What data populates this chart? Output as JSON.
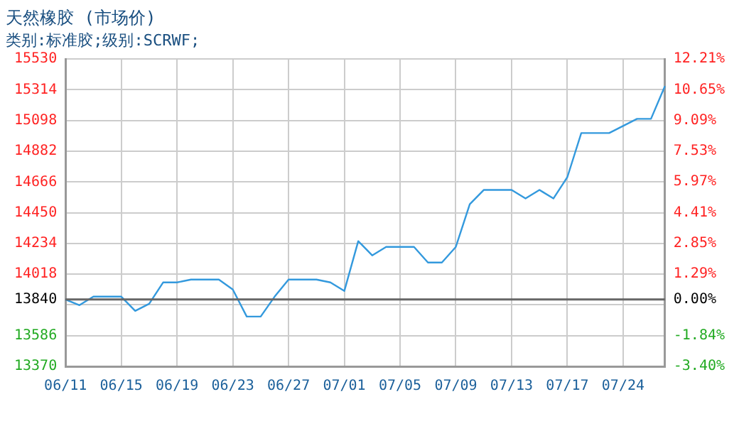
{
  "chart_data": {
    "type": "line",
    "title": "天然橡胶 (市场价)",
    "subtitle": "类别:标准胶;级别:SCRWF;",
    "categories": [
      "06/11",
      null,
      null,
      null,
      "06/15",
      null,
      null,
      null,
      "06/19",
      null,
      null,
      null,
      "06/23",
      null,
      null,
      null,
      "06/27",
      null,
      null,
      null,
      "07/01",
      null,
      null,
      null,
      "07/05",
      null,
      null,
      null,
      "07/09",
      null,
      null,
      null,
      "07/13",
      null,
      null,
      null,
      "07/17",
      null,
      null,
      null,
      "07/24",
      null,
      null,
      null
    ],
    "series": [
      {
        "color": "#3399dd",
        "values": [
          13840,
          13800,
          13860,
          13860,
          13860,
          13760,
          13810,
          13960,
          13960,
          13980,
          13980,
          13980,
          13910,
          13720,
          13720,
          13860,
          13980,
          13980,
          13980,
          13960,
          13900,
          14250,
          14150,
          14210,
          14210,
          14210,
          14100,
          14100,
          14210,
          14510,
          14610,
          14610,
          14610,
          14550,
          14610,
          14550,
          14700,
          15010,
          15010,
          15010,
          15060,
          15110,
          15110,
          15340
        ]
      }
    ],
    "ylim": [
      13370,
      15530
    ],
    "yticks": [
      13370,
      13586,
      {
        "value": 13802,
        "label": null
      },
      13840,
      14018,
      14234,
      14450,
      14666,
      14882,
      15098,
      15314,
      15530
    ],
    "y2lim": [
      -3.4,
      12.21
    ],
    "y2ticks": [
      {
        "value": -3.4,
        "label": "-3.40%"
      },
      {
        "value": -1.84,
        "label": "-1.84%"
      },
      {
        "value": 0,
        "label": "0.00%"
      },
      {
        "value": 1.29,
        "label": "1.29%"
      },
      {
        "value": 2.85,
        "label": "2.85%"
      },
      {
        "value": 4.41,
        "label": "4.41%"
      },
      {
        "value": 5.97,
        "label": "5.97%"
      },
      {
        "value": 7.53,
        "label": "7.53%"
      },
      {
        "value": 9.09,
        "label": "9.09%"
      },
      {
        "value": 10.65,
        "label": "10.65%"
      },
      {
        "value": 12.21,
        "label": "12.21%"
      }
    ],
    "ref_lines": [
      {
        "axis": "y",
        "value": 13840,
        "color": "#666666"
      }
    ],
    "grid": true,
    "legend": false,
    "marker": "none",
    "line_style": "solid"
  }
}
